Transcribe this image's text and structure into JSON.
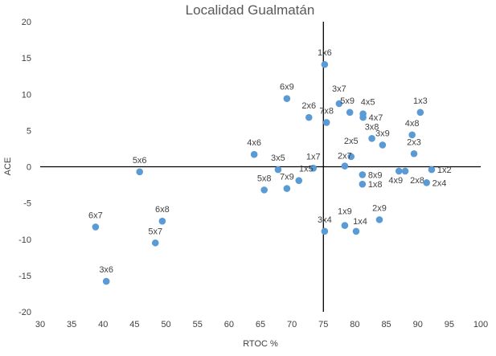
{
  "chart_data": {
    "type": "scatter",
    "title": "Localidad Gualmatán",
    "xlabel": "RTOC %",
    "ylabel": "ACE",
    "xlim": [
      30,
      100
    ],
    "ylim": [
      -20,
      20
    ],
    "xticks": [
      30,
      35,
      40,
      45,
      50,
      55,
      60,
      65,
      70,
      75,
      80,
      85,
      90,
      95,
      100
    ],
    "yticks": [
      -20,
      -15,
      -10,
      -5,
      0,
      5,
      10,
      15,
      20
    ],
    "axis_cross": {
      "x": 75,
      "y": 0
    },
    "grid": false,
    "point_color": "#5B9BD5",
    "points": [
      {
        "label": "1x6",
        "x": 75.2,
        "y": 14.1
      },
      {
        "label": "6x9",
        "x": 69.2,
        "y": 9.4
      },
      {
        "label": "3x7",
        "x": 77.5,
        "y": 8.7
      },
      {
        "label": "5x9",
        "x": 79.2,
        "y": 7.5
      },
      {
        "label": "4x5",
        "x": 81.3,
        "y": 7.3
      },
      {
        "label": "4x7",
        "x": 81.3,
        "y": 6.8
      },
      {
        "label": "1x3",
        "x": 90.4,
        "y": 7.5
      },
      {
        "label": "2x6",
        "x": 72.7,
        "y": 6.8
      },
      {
        "label": "7x8",
        "x": 75.5,
        "y": 6.1
      },
      {
        "label": "3x8",
        "x": 82.7,
        "y": 3.9
      },
      {
        "label": "4x8",
        "x": 89.1,
        "y": 4.4
      },
      {
        "label": "3x9",
        "x": 84.4,
        "y": 3.0
      },
      {
        "label": "2x3",
        "x": 89.4,
        "y": 1.8
      },
      {
        "label": "4x6",
        "x": 64.0,
        "y": 1.7
      },
      {
        "label": "2x5",
        "x": 79.4,
        "y": 1.4
      },
      {
        "label": "2x7",
        "x": 78.4,
        "y": 0.1
      },
      {
        "label": "1x7",
        "x": 73.4,
        "y": -0.2
      },
      {
        "label": "5x6",
        "x": 45.8,
        "y": -0.7
      },
      {
        "label": "3x5",
        "x": 67.8,
        "y": -0.4
      },
      {
        "label": "8x9",
        "x": 81.2,
        "y": -1.1
      },
      {
        "label": "4x9",
        "x": 87.0,
        "y": -0.6
      },
      {
        "label": "2x8",
        "x": 88.0,
        "y": -0.6
      },
      {
        "label": "1x2",
        "x": 92.2,
        "y": -0.4
      },
      {
        "label": "2x4",
        "x": 91.4,
        "y": -2.2
      },
      {
        "label": "1x8",
        "x": 81.2,
        "y": -2.4
      },
      {
        "label": "1x5",
        "x": 71.1,
        "y": -1.9
      },
      {
        "label": "5x8",
        "x": 65.6,
        "y": -3.2
      },
      {
        "label": "7x9",
        "x": 69.2,
        "y": -3.0
      },
      {
        "label": "2x9",
        "x": 83.9,
        "y": -7.3
      },
      {
        "label": "1x9",
        "x": 78.4,
        "y": -8.1
      },
      {
        "label": "1x4",
        "x": 80.2,
        "y": -8.9
      },
      {
        "label": "3x4",
        "x": 75.2,
        "y": -8.9
      },
      {
        "label": "6x7",
        "x": 38.8,
        "y": -8.3
      },
      {
        "label": "6x8",
        "x": 49.4,
        "y": -7.5
      },
      {
        "label": "5x7",
        "x": 48.3,
        "y": -10.5
      },
      {
        "label": "3x6",
        "x": 40.5,
        "y": -15.8
      }
    ]
  }
}
